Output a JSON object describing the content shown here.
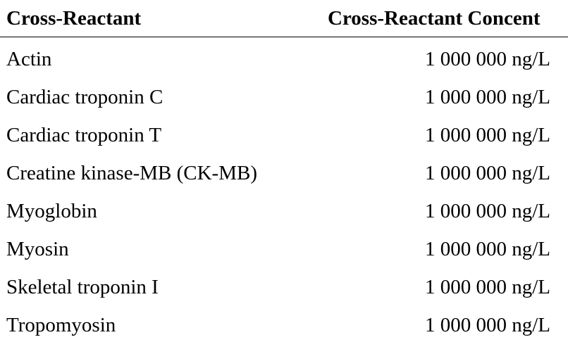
{
  "table": {
    "headers": [
      "Cross-Reactant",
      "Cross-Reactant Concent"
    ],
    "rows": [
      {
        "name": "Actin",
        "concentration": "1 000 000 ng/L"
      },
      {
        "name": "Cardiac troponin C",
        "concentration": "1 000 000 ng/L"
      },
      {
        "name": "Cardiac troponin T",
        "concentration": "1 000 000 ng/L"
      },
      {
        "name": "Creatine kinase-MB (CK-MB)",
        "concentration": "1 000 000 ng/L"
      },
      {
        "name": "Myoglobin",
        "concentration": "1 000 000 ng/L"
      },
      {
        "name": "Myosin",
        "concentration": "1 000 000 ng/L"
      },
      {
        "name": "Skeletal troponin I",
        "concentration": "1 000 000 ng/L"
      },
      {
        "name": "Tropomyosin",
        "concentration": "1 000 000 ng/L"
      }
    ]
  }
}
